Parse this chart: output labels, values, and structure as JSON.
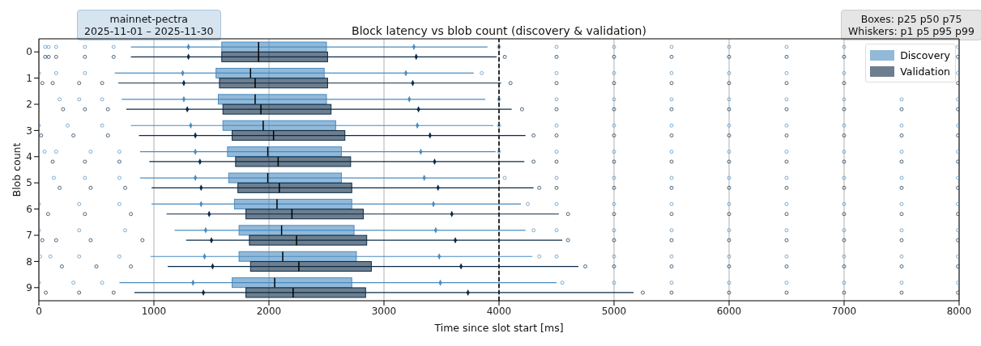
{
  "chart_data": {
    "type": "box",
    "orientation": "horizontal",
    "title": "Block latency vs blob count (discovery & validation)",
    "xlabel": "Time since slot start [ms]",
    "ylabel": "Blob count",
    "annotations": [
      "mainnet-pectra\n2025-11-01 – 2025-11-30",
      "Boxes: p25 p50 p75\nWhiskers: p1 p5 p95 p99"
    ],
    "categories": [
      "0",
      "1",
      "2",
      "3",
      "4",
      "5",
      "6",
      "7",
      "8",
      "9"
    ],
    "xlim": [
      0,
      8000
    ],
    "xticks": [
      0,
      1000,
      2000,
      3000,
      4000,
      5000,
      6000,
      7000,
      8000
    ],
    "grid": "x",
    "legend": "top right",
    "ref_lines": [
      {
        "axis": "x",
        "value": 4000,
        "color": "#000000",
        "line_style": "dashed"
      }
    ],
    "series": [
      {
        "name": "Discovery",
        "color": "#4a8bbf",
        "boxes": [
          {
            "low": 800,
            "q1": 1590,
            "median": 1910,
            "q3": 2500,
            "high": 3900,
            "outliers": [
              55,
              85,
              150,
              400,
              650,
              4000,
              4500,
              5000,
              5500,
              6000,
              6500,
              7000,
              7990
            ]
          },
          {
            "low": 660,
            "q1": 1540,
            "median": 1840,
            "q3": 2480,
            "high": 3780,
            "outliers": [
              0,
              150,
              400,
              3850,
              4500,
              5000,
              5500,
              6000,
              6500,
              7000,
              7990
            ]
          },
          {
            "low": 720,
            "q1": 1560,
            "median": 1880,
            "q3": 2500,
            "high": 3880,
            "outliers": [
              180,
              350,
              550,
              4000,
              4500,
              5000,
              5500,
              6000,
              6500,
              7000,
              7500,
              7990
            ]
          },
          {
            "low": 800,
            "q1": 1600,
            "median": 1950,
            "q3": 2580,
            "high": 3950,
            "outliers": [
              0,
              250,
              550,
              4000,
              4500,
              5000,
              5500,
              6000,
              6500,
              7000,
              7500,
              7990
            ]
          },
          {
            "low": 880,
            "q1": 1640,
            "median": 1990,
            "q3": 2630,
            "high": 3970,
            "outliers": [
              50,
              150,
              450,
              700,
              4000,
              4500,
              5000,
              5500,
              6000,
              6500,
              7000,
              7500,
              7990
            ]
          },
          {
            "low": 880,
            "q1": 1650,
            "median": 1990,
            "q3": 2630,
            "high": 3990,
            "outliers": [
              130,
              400,
              700,
              4050,
              4500,
              5000,
              5500,
              6000,
              6500,
              7000,
              7500,
              7990
            ]
          },
          {
            "low": 980,
            "q1": 1700,
            "median": 2070,
            "q3": 2720,
            "high": 4190,
            "outliers": [
              0,
              350,
              700,
              4250,
              4500,
              5000,
              5500,
              6000,
              6500,
              7000,
              7500,
              7990
            ]
          },
          {
            "low": 1180,
            "q1": 1740,
            "median": 2110,
            "q3": 2740,
            "high": 4230,
            "outliers": [
              0,
              350,
              750,
              4300,
              4500,
              5000,
              5500,
              6000,
              6500,
              7000,
              7500,
              7990
            ]
          },
          {
            "low": 970,
            "q1": 1740,
            "median": 2120,
            "q3": 2760,
            "high": 4290,
            "outliers": [
              10,
              100,
              350,
              700,
              4350,
              4500,
              5000,
              5500,
              6000,
              6500,
              7000,
              7500,
              7990
            ]
          },
          {
            "low": 700,
            "q1": 1680,
            "median": 2050,
            "q3": 2720,
            "high": 4500,
            "outliers": [
              0,
              300,
              550,
              4550,
              5000,
              5500,
              6000,
              6500,
              7000,
              7500,
              7990
            ]
          }
        ]
      },
      {
        "name": "Validation",
        "color": "#0b2a45",
        "boxes": [
          {
            "low": 800,
            "q1": 1590,
            "median": 1910,
            "q3": 2510,
            "high": 3980,
            "outliers": [
              55,
              85,
              150,
              400,
              650,
              4050,
              4500,
              5000,
              5500,
              6000,
              6500,
              7000,
              7990
            ]
          },
          {
            "low": 690,
            "q1": 1570,
            "median": 1880,
            "q3": 2510,
            "high": 4020,
            "outliers": [
              30,
              120,
              350,
              550,
              4100,
              4500,
              5000,
              5500,
              6000,
              6500,
              7000,
              7990
            ]
          },
          {
            "low": 760,
            "q1": 1600,
            "median": 1930,
            "q3": 2540,
            "high": 4110,
            "outliers": [
              210,
              400,
              600,
              4200,
              4500,
              5000,
              5500,
              6000,
              6500,
              7000,
              7500,
              7990
            ]
          },
          {
            "low": 870,
            "q1": 1680,
            "median": 2040,
            "q3": 2660,
            "high": 4230,
            "outliers": [
              20,
              300,
              600,
              4300,
              4500,
              5000,
              5500,
              6000,
              6500,
              7000,
              7500,
              7990
            ]
          },
          {
            "low": 960,
            "q1": 1710,
            "median": 2080,
            "q3": 2710,
            "high": 4220,
            "outliers": [
              120,
              400,
              700,
              4300,
              4500,
              5000,
              5500,
              6000,
              6500,
              7000,
              7500,
              7990
            ]
          },
          {
            "low": 980,
            "q1": 1730,
            "median": 2090,
            "q3": 2720,
            "high": 4300,
            "outliers": [
              180,
              450,
              750,
              4350,
              4500,
              5000,
              5500,
              6000,
              6500,
              7000,
              7500,
              7990
            ]
          },
          {
            "low": 1110,
            "q1": 1800,
            "median": 2200,
            "q3": 2820,
            "high": 4520,
            "outliers": [
              80,
              400,
              800,
              4600,
              5000,
              5500,
              6000,
              6500,
              7000,
              7500,
              7990
            ]
          },
          {
            "low": 1280,
            "q1": 1830,
            "median": 2240,
            "q3": 2850,
            "high": 4550,
            "outliers": [
              30,
              150,
              450,
              900,
              4600,
              5000,
              5500,
              6000,
              6500,
              7000,
              7500,
              7990
            ]
          },
          {
            "low": 1120,
            "q1": 1840,
            "median": 2260,
            "q3": 2890,
            "high": 4690,
            "outliers": [
              200,
              500,
              800,
              4750,
              5000,
              5500,
              6000,
              6500,
              7000,
              7500,
              7990
            ]
          },
          {
            "low": 830,
            "q1": 1800,
            "median": 2210,
            "q3": 2840,
            "high": 5170,
            "outliers": [
              60,
              350,
              650,
              5250,
              5500,
              6000,
              6500,
              7000,
              7500,
              7990
            ]
          }
        ]
      },
      {
        "type": "scatter",
        "marker": "diamond",
        "color": "#4a8bbf",
        "x": [
          "0",
          "1",
          "2",
          "3",
          "4",
          "5",
          "6",
          "7",
          "8",
          "9"
        ],
        "values": [
          1300,
          1250,
          1260,
          1320,
          1360,
          1360,
          1410,
          1450,
          1440,
          1340
        ]
      },
      {
        "type": "scatter",
        "marker": "diamond",
        "color": "#4a8bbf",
        "x": [
          "0",
          "1",
          "2",
          "3",
          "4",
          "5",
          "6",
          "7",
          "8",
          "9"
        ],
        "values": [
          3260,
          3190,
          3220,
          3290,
          3320,
          3350,
          3430,
          3450,
          3480,
          3490
        ]
      },
      {
        "type": "scatter",
        "marker": "diamond",
        "color": "#0b2a45",
        "x": [
          "0",
          "1",
          "2",
          "3",
          "4",
          "5",
          "6",
          "7",
          "8",
          "9"
        ],
        "values": [
          1300,
          1260,
          1290,
          1360,
          1400,
          1410,
          1480,
          1500,
          1510,
          1430
        ]
      },
      {
        "type": "scatter",
        "marker": "diamond",
        "color": "#0b2a45",
        "x": [
          "0",
          "1",
          "2",
          "3",
          "4",
          "5",
          "6",
          "7",
          "8",
          "9"
        ],
        "values": [
          3280,
          3250,
          3300,
          3400,
          3440,
          3470,
          3590,
          3620,
          3670,
          3730
        ]
      }
    ]
  }
}
